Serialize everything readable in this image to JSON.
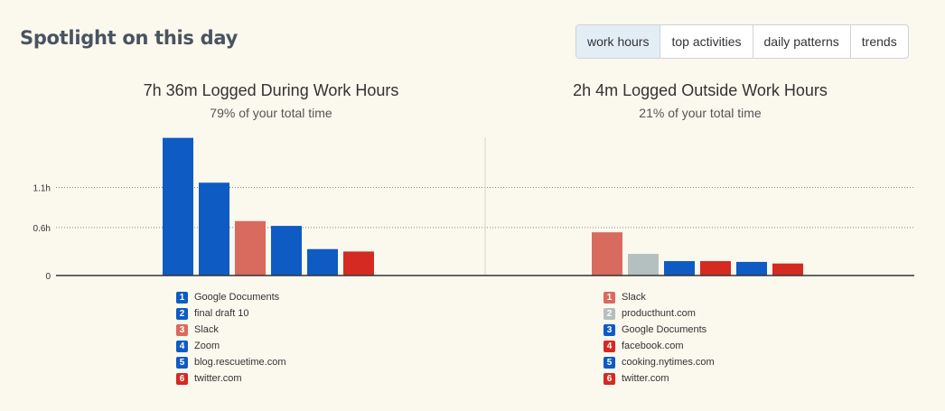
{
  "header": {
    "title": "Spotlight on this day",
    "tabs": [
      {
        "label": "work hours",
        "active": true
      },
      {
        "label": "top activities",
        "active": false
      },
      {
        "label": "daily patterns",
        "active": false
      },
      {
        "label": "trends",
        "active": false
      }
    ]
  },
  "colors": {
    "productive_blue": "#0f5bc4",
    "neutral_gray": "#b4c0bf",
    "slack_salmon": "#d96a5e",
    "distracting_red": "#d42a22",
    "gridline": "#888888",
    "axis": "#333333"
  },
  "chart_data": [
    {
      "type": "bar",
      "title": "7h 36m Logged During Work Hours",
      "subtitle": "79% of your total time",
      "y_unit": "h",
      "yticks": [
        {
          "value": 0,
          "label": "0"
        },
        {
          "value": 0.6,
          "label": "0.6h"
        },
        {
          "value": 1.1,
          "label": "1.1h"
        }
      ],
      "ylim": [
        0,
        1.75
      ],
      "grid": true,
      "categories": [
        "Google Documents",
        "final draft 10",
        "Slack",
        "Zoom",
        "blog.rescuetime.com",
        "twitter.com"
      ],
      "values": [
        1.72,
        1.16,
        0.68,
        0.62,
        0.33,
        0.3
      ],
      "colors": [
        "#0f5bc4",
        "#0f5bc4",
        "#d96a5e",
        "#0f5bc4",
        "#0f5bc4",
        "#d42a22"
      ]
    },
    {
      "type": "bar",
      "title": "2h 4m Logged Outside Work Hours",
      "subtitle": "21% of your total time",
      "y_unit": "h",
      "yticks": [
        {
          "value": 0,
          "label": "0"
        },
        {
          "value": 0.6,
          "label": "0.6h"
        },
        {
          "value": 1.1,
          "label": "1.1h"
        }
      ],
      "ylim": [
        0,
        1.75
      ],
      "grid": true,
      "categories": [
        "Slack",
        "producthunt.com",
        "Google Documents",
        "facebook.com",
        "cooking.nytimes.com",
        "twitter.com"
      ],
      "values": [
        0.54,
        0.27,
        0.18,
        0.18,
        0.17,
        0.15
      ],
      "colors": [
        "#d96a5e",
        "#b4c0bf",
        "#0f5bc4",
        "#d42a22",
        "#0f5bc4",
        "#d42a22"
      ]
    }
  ]
}
